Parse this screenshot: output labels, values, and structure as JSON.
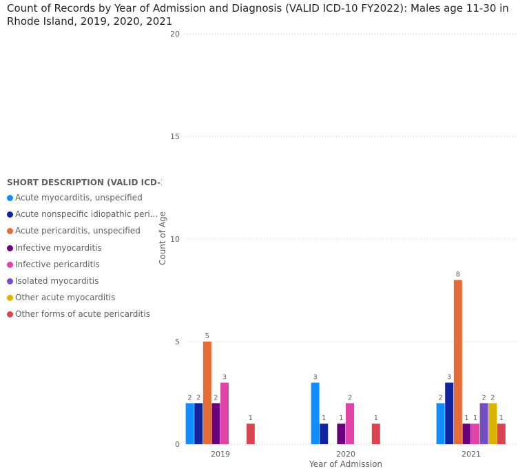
{
  "title": "Count of Records by Year of Admission and Diagnosis (VALID ICD-10 FY2022): Males age 11-30 in Rhode Island, 2019, 2020, 2021",
  "legend": {
    "title": "SHORT DESCRIPTION (VALID ICD-1...",
    "items": [
      {
        "label": "Acute myocarditis, unspecified",
        "color": "#118DFF"
      },
      {
        "label": "Acute nonspecific idiopathic peri...",
        "color": "#12239E"
      },
      {
        "label": "Acute pericarditis, unspecified",
        "color": "#E66C37"
      },
      {
        "label": "Infective myocarditis",
        "color": "#6B007B"
      },
      {
        "label": "Infective pericarditis",
        "color": "#E044A7"
      },
      {
        "label": "Isolated myocarditis",
        "color": "#744EC2"
      },
      {
        "label": "Other acute myocarditis",
        "color": "#D9B300"
      },
      {
        "label": "Other forms of acute pericarditis",
        "color": "#D64550"
      }
    ]
  },
  "chart_data": {
    "type": "bar",
    "categories": [
      "2019",
      "2020",
      "2021"
    ],
    "xlabel": "Year of Admission",
    "ylabel": "Count of Age",
    "ylim": [
      0,
      20
    ],
    "yticks": [
      "0",
      "5",
      "10",
      "15",
      "20"
    ],
    "grid": true,
    "legend_position": "left",
    "series": [
      {
        "name": "Acute myocarditis, unspecified",
        "values": [
          2,
          3,
          2
        ]
      },
      {
        "name": "Acute nonspecific idiopathic peri...",
        "values": [
          2,
          1,
          3
        ]
      },
      {
        "name": "Acute pericarditis, unspecified",
        "values": [
          5,
          null,
          8
        ]
      },
      {
        "name": "Infective myocarditis",
        "values": [
          2,
          1,
          1
        ]
      },
      {
        "name": "Infective pericarditis",
        "values": [
          3,
          2,
          1
        ]
      },
      {
        "name": "Isolated myocarditis",
        "values": [
          null,
          null,
          2
        ]
      },
      {
        "name": "Other acute myocarditis",
        "values": [
          null,
          null,
          2
        ]
      },
      {
        "name": "Other forms of acute pericarditis",
        "values": [
          1,
          1,
          1
        ]
      }
    ]
  }
}
